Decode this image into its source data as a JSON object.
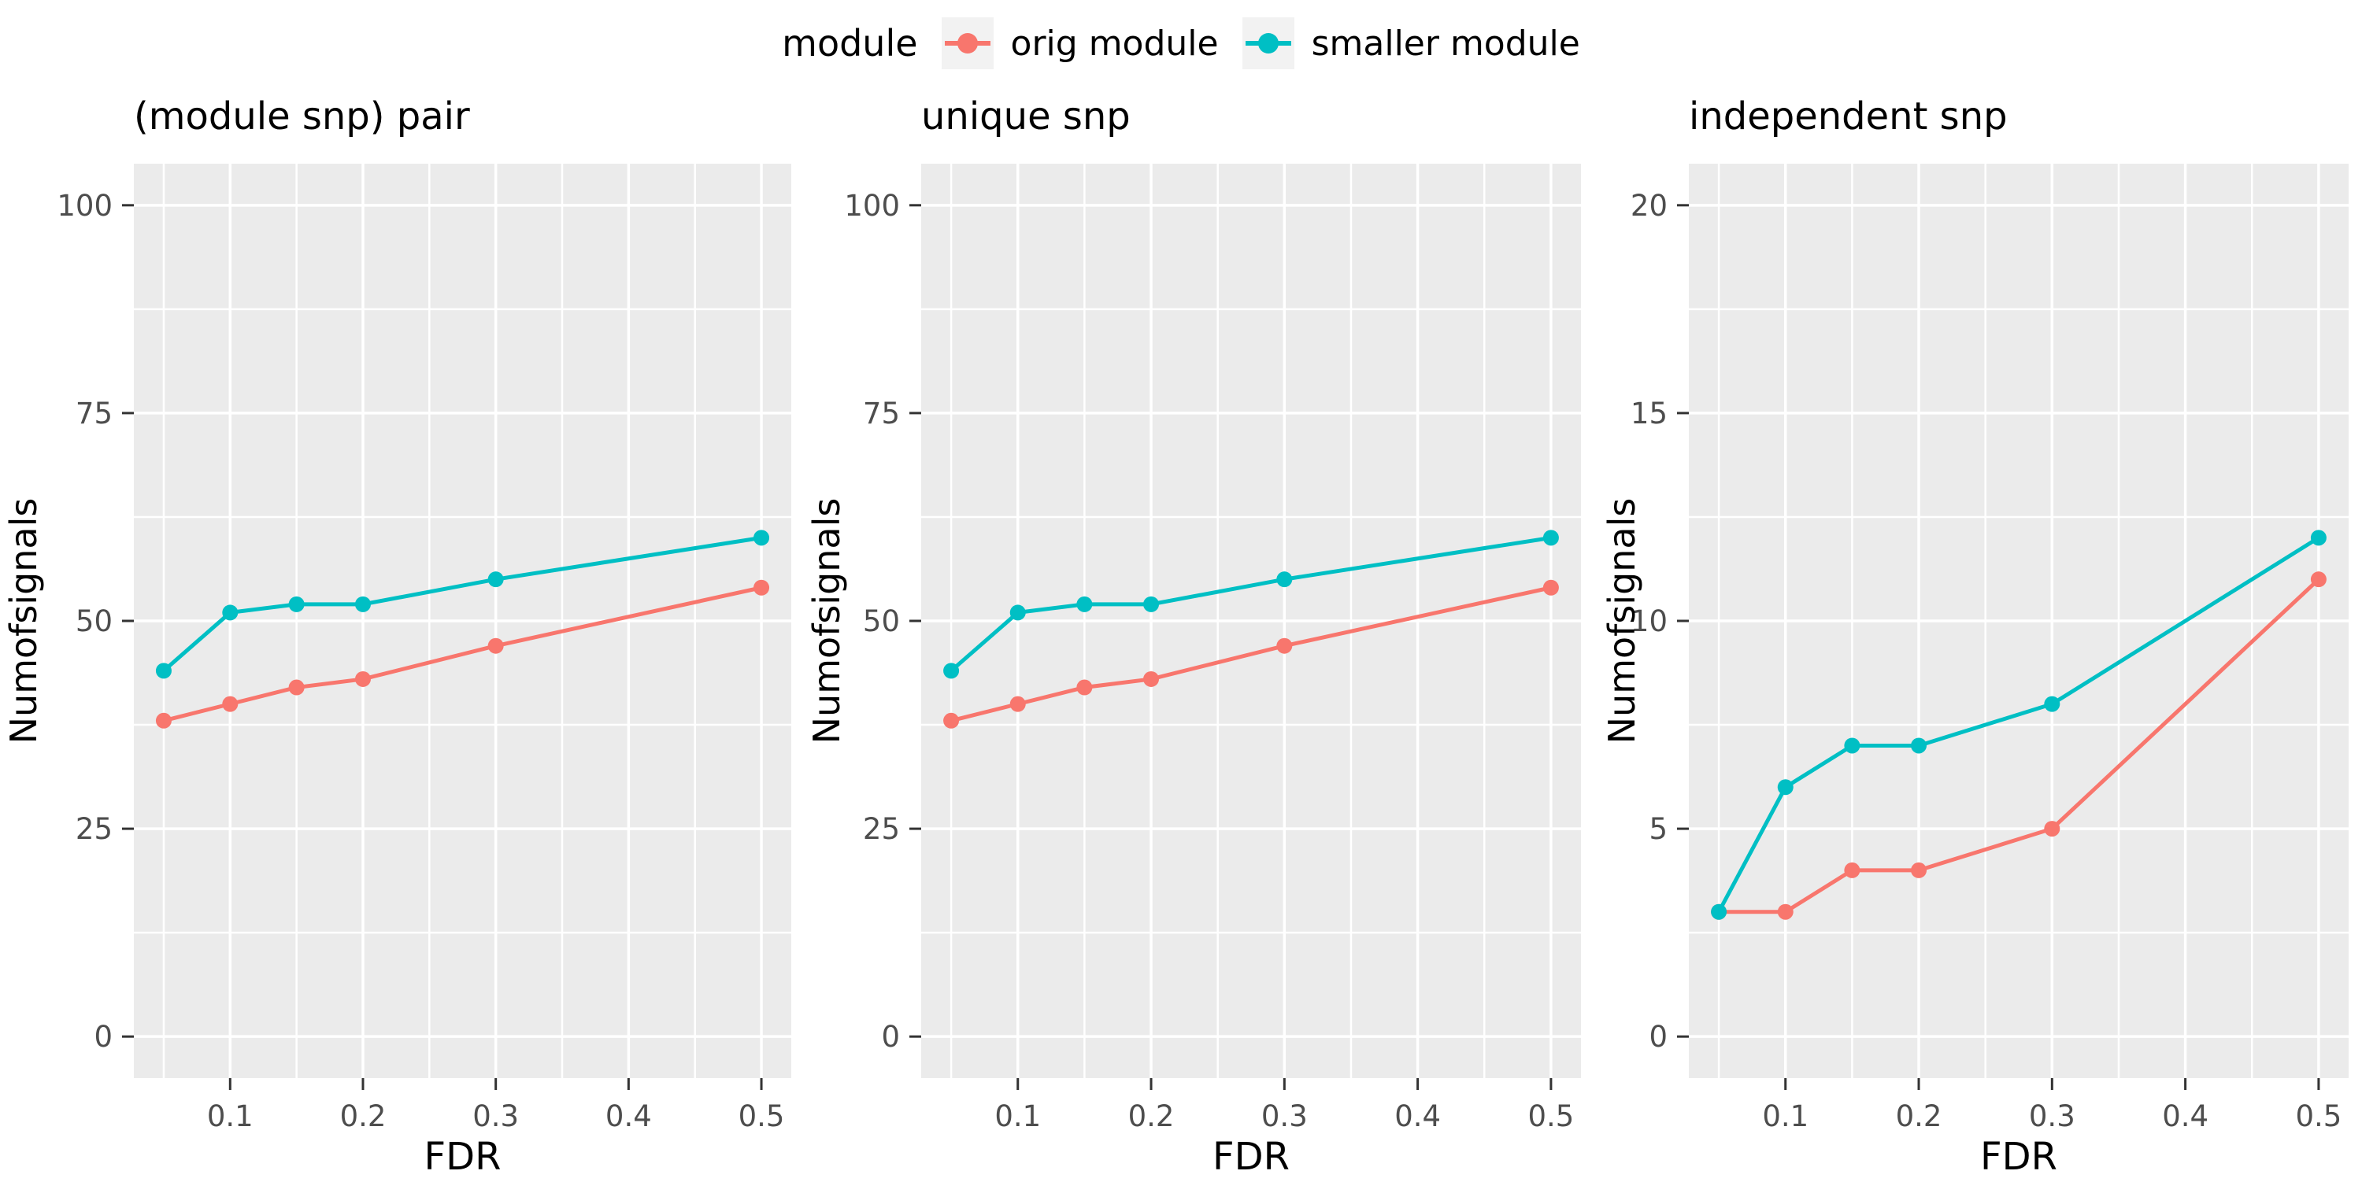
{
  "legend": {
    "title": "module",
    "items": [
      {
        "label": "orig module",
        "color": "#F8766D"
      },
      {
        "label": "smaller module",
        "color": "#00BFC4"
      }
    ]
  },
  "style": {
    "panel_bg": "#EBEBEB",
    "grid_color": "#FFFFFF",
    "tick_color": "#333333",
    "tick_label_color": "#4D4D4D",
    "legend_key_bg": "#F2F2F2"
  },
  "chart_data": [
    {
      "type": "line",
      "title": "(module snp) pair",
      "xlabel": "FDR",
      "ylabel": "Numofsignals",
      "xlim": [
        0.0275,
        0.5225
      ],
      "ylim": [
        -5,
        105
      ],
      "xticks": [
        0.1,
        0.2,
        0.3,
        0.4,
        0.5
      ],
      "xtick_labels": [
        "0.1",
        "0.2",
        "0.3",
        "0.4",
        "0.5"
      ],
      "yticks": [
        0,
        25,
        50,
        75,
        100
      ],
      "ytick_labels": [
        "0",
        "25",
        "50",
        "75",
        "100"
      ],
      "grid": true,
      "legend_position": "top",
      "x": [
        0.05,
        0.1,
        0.15,
        0.2,
        0.3,
        0.5
      ],
      "series": [
        {
          "name": "orig module",
          "color": "#F8766D",
          "values": [
            38,
            40,
            42,
            43,
            47,
            54
          ]
        },
        {
          "name": "smaller module",
          "color": "#00BFC4",
          "values": [
            44,
            51,
            52,
            52,
            55,
            60
          ]
        }
      ]
    },
    {
      "type": "line",
      "title": "unique snp",
      "xlabel": "FDR",
      "ylabel": "Numofsignals",
      "xlim": [
        0.0275,
        0.5225
      ],
      "ylim": [
        -5,
        105
      ],
      "xticks": [
        0.1,
        0.2,
        0.3,
        0.4,
        0.5
      ],
      "xtick_labels": [
        "0.1",
        "0.2",
        "0.3",
        "0.4",
        "0.5"
      ],
      "yticks": [
        0,
        25,
        50,
        75,
        100
      ],
      "ytick_labels": [
        "0",
        "25",
        "50",
        "75",
        "100"
      ],
      "grid": true,
      "legend_position": "top",
      "x": [
        0.05,
        0.1,
        0.15,
        0.2,
        0.3,
        0.5
      ],
      "series": [
        {
          "name": "orig module",
          "color": "#F8766D",
          "values": [
            38,
            40,
            42,
            43,
            47,
            54
          ]
        },
        {
          "name": "smaller module",
          "color": "#00BFC4",
          "values": [
            44,
            51,
            52,
            52,
            55,
            60
          ]
        }
      ]
    },
    {
      "type": "line",
      "title": "independent snp",
      "xlabel": "FDR",
      "ylabel": "Numofsignals",
      "xlim": [
        0.0275,
        0.5225
      ],
      "ylim": [
        -1,
        21
      ],
      "xticks": [
        0.1,
        0.2,
        0.3,
        0.4,
        0.5
      ],
      "xtick_labels": [
        "0.1",
        "0.2",
        "0.3",
        "0.4",
        "0.5"
      ],
      "yticks": [
        0,
        5,
        10,
        15,
        20
      ],
      "ytick_labels": [
        "0",
        "5",
        "10",
        "15",
        "20"
      ],
      "grid": true,
      "legend_position": "top",
      "x": [
        0.05,
        0.1,
        0.15,
        0.2,
        0.3,
        0.5
      ],
      "series": [
        {
          "name": "orig module",
          "color": "#F8766D",
          "values": [
            3,
            3,
            4,
            4,
            5,
            11
          ]
        },
        {
          "name": "smaller module",
          "color": "#00BFC4",
          "values": [
            3,
            6,
            7,
            7,
            8,
            12
          ]
        }
      ]
    }
  ]
}
